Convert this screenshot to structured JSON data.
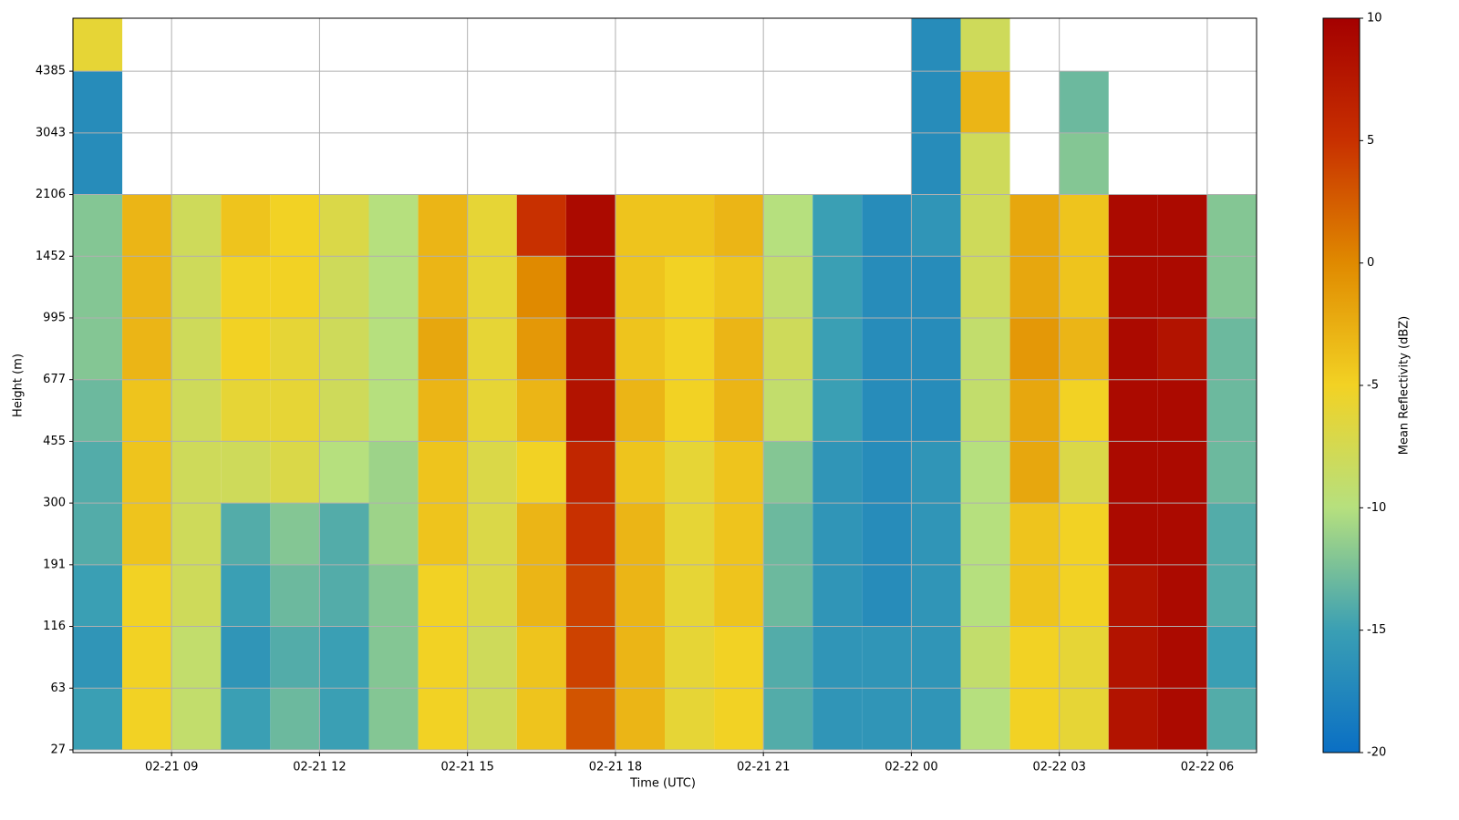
{
  "chart_data": {
    "type": "heatmap",
    "xlabel": "Time (UTC)",
    "ylabel": "Height (m)",
    "colorbar_label": "Mean Reflectivity (dBZ)",
    "xbins": [
      "02-21 07",
      "02-21 08",
      "02-21 09",
      "02-21 10",
      "02-21 11",
      "02-21 12",
      "02-21 13",
      "02-21 14",
      "02-21 15",
      "02-21 16",
      "02-21 17",
      "02-21 18",
      "02-21 19",
      "02-21 20",
      "02-21 21",
      "02-21 22",
      "02-21 23",
      "02-22 00",
      "02-22 01",
      "02-22 02",
      "02-22 03",
      "02-22 04",
      "02-22 05",
      "02-22 06",
      "02-22 07"
    ],
    "xlim": [
      "02-21 07",
      "02-22 07"
    ],
    "xticks": [
      "02-21 09",
      "02-21 12",
      "02-21 15",
      "02-21 18",
      "02-21 21",
      "02-22 00",
      "02-22 03",
      "02-22 06"
    ],
    "ybins": [
      27,
      63,
      116,
      191,
      300,
      455,
      677,
      995,
      1452,
      2106,
      3043,
      4385,
      6000
    ],
    "ylim": [
      26,
      6000
    ],
    "yticks": [
      27,
      63,
      116,
      191,
      300,
      455,
      677,
      995,
      1452,
      2106,
      3043,
      4385
    ],
    "clim": [
      -20,
      10
    ],
    "cticks": [
      -20,
      -15,
      -10,
      -5,
      0,
      5,
      10
    ],
    "colormap": [
      "#0a6fc4",
      "#3a9fb4",
      "#b6e07e",
      "#f2d224",
      "#e08a00",
      "#c83000",
      "#a40000"
    ],
    "grid": true,
    "z": [
      [
        -15,
        -5,
        -9,
        -15,
        -13,
        -15,
        -12,
        -5,
        -8,
        -4,
        3,
        -3,
        -6,
        -5,
        -14,
        -16,
        -16,
        -16,
        -10,
        -5,
        -6,
        8,
        9,
        -14
      ],
      [
        -16,
        -5,
        -9,
        -16,
        -14,
        -15,
        -12,
        -5,
        -8,
        -4,
        4,
        -3,
        -6,
        -5,
        -14,
        -16,
        -16,
        -16,
        -9,
        -5,
        -6,
        8,
        9,
        -15
      ],
      [
        -15,
        -5,
        -8,
        -15,
        -13,
        -14,
        -12,
        -5,
        -7,
        -3,
        4,
        -3,
        -6,
        -4,
        -13,
        -16,
        -17,
        -16,
        -10,
        -4,
        -5,
        8,
        9,
        -14
      ],
      [
        -14,
        -4,
        -8,
        -14,
        -12,
        -14,
        -11,
        -4,
        -7,
        -3,
        5,
        -3,
        -6,
        -4,
        -13,
        -16,
        -17,
        -16,
        -10,
        -4,
        -5,
        9,
        9,
        -14
      ],
      [
        -14,
        -4,
        -8,
        -8,
        -7,
        -10,
        -11,
        -4,
        -7,
        -5,
        6,
        -4,
        -6,
        -4,
        -12,
        -16,
        -17,
        -16,
        -10,
        -2,
        -7,
        9,
        9,
        -13
      ],
      [
        -13,
        -4,
        -8,
        -6,
        -6,
        -8,
        -10,
        -3,
        -6,
        -3,
        8,
        -3,
        -5,
        -3,
        -9,
        -15,
        -17,
        -17,
        -9,
        -2,
        -5,
        9,
        9,
        -13
      ],
      [
        -12,
        -3,
        -8,
        -5,
        -6,
        -8,
        -10,
        -2,
        -6,
        -1,
        8,
        -4,
        -5,
        -3,
        -8,
        -15,
        -17,
        -17,
        -9,
        -1,
        -3,
        9,
        8,
        -13
      ],
      [
        -12,
        -3,
        -8,
        -5,
        -5,
        -8,
        -10,
        -3,
        -6,
        0,
        9,
        -4,
        -5,
        -4,
        -9,
        -15,
        -17,
        -17,
        -8,
        -2,
        -4,
        9,
        9,
        -12
      ],
      [
        -12,
        -3,
        -8,
        -4,
        -5,
        -7,
        -10,
        -3,
        -6,
        5,
        9,
        -4,
        -4,
        -3,
        -10,
        -15,
        -17,
        -16,
        -8,
        -2,
        -4,
        9,
        9,
        -12
      ],
      [
        -17,
        null,
        null,
        null,
        null,
        null,
        null,
        null,
        null,
        null,
        null,
        null,
        null,
        null,
        null,
        null,
        null,
        -17,
        -8,
        null,
        -12,
        null,
        null,
        null
      ],
      [
        -17,
        null,
        null,
        null,
        null,
        null,
        null,
        null,
        null,
        null,
        null,
        null,
        null,
        null,
        null,
        null,
        null,
        -17,
        -3,
        null,
        -13,
        null,
        null,
        null
      ],
      [
        -6,
        null,
        null,
        null,
        null,
        null,
        null,
        null,
        null,
        null,
        null,
        null,
        null,
        null,
        null,
        null,
        null,
        -17,
        -8,
        null,
        null,
        null,
        null,
        null
      ]
    ]
  }
}
